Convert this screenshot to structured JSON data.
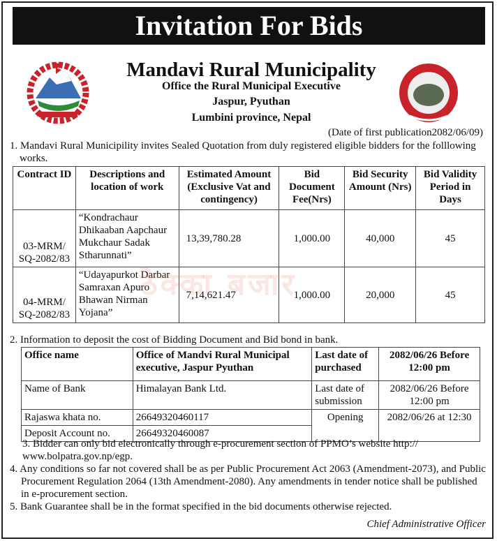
{
  "title": "Invitation For Bids",
  "header": {
    "org": "Mandavi Rural Municipality",
    "office": "Office the Rural Municipal Executive",
    "location": "Jaspur, Pyuthan",
    "province": "Lumbini province, Nepal"
  },
  "publication_date": "(Date of first publication2082/06/09)",
  "watermark": "ठेक्का बजार",
  "item1": "1. Mandavi Rural Municipility invites Sealed Quotation  from duly registered eligible  bidders for the folllowing works.",
  "works_table": {
    "headers": [
      "Contract ID",
      "Descriptions and location of work",
      "Estimated Amount (Exclusive Vat and contingency)",
      "Bid Document Fee(Nrs)",
      "Bid Security Amount (Nrs)",
      "Bid Validity Period in Days"
    ],
    "rows": [
      [
        "03-MRM/ SQ-2082/83",
        "“Kondrachaur Dhikaaban Aapchaur Mukchaur Sadak Stharunnati”",
        "13,39,780.28",
        "1,000.00",
        "40,000",
        "45"
      ],
      [
        "04-MRM/ SQ-2082/83",
        "“Udayapurkot Darbar Samraxan Apuro Bhawan Nirman Yojana”",
        "7,14,621.47",
        "1,000.00",
        "20,000",
        "45"
      ]
    ]
  },
  "item2": "2. Information to deposit  the cost of Bidding Document and Bid bond in bank.",
  "bank_table": {
    "office_name_label": "Office name",
    "office_name": "Office of Mandvi Rural Municipal executive, Jaspur Pyuthan",
    "last_purchase_label": "Last date of purchased",
    "last_purchase": "2082/06/26 Before 12:00 pm",
    "bank_label": "Name of Bank",
    "bank": "Himalayan Bank Ltd.",
    "last_submission_label": "Last date of submission",
    "last_submission": "2082/06/26 Before 12:00 pm",
    "rajaswa_label": "Rajaswa khata no.",
    "rajaswa": "26649320460117",
    "opening_label": "Opening",
    "opening": "2082/06/26 at 12:30",
    "deposit_label": "Deposit Account no.",
    "deposit": "26649320460087"
  },
  "item3": "3. Bidder can only bid electronically through e-procurement section of PPMO’s website http:// www.bolpatra.gov.np/egp.",
  "item4": "4. Any conditions so far not covered shall be as per Public Procurement Act 2063 (Amendment-2073), and Public Procurement Regulation 2064 (13th Amendment-2080). Any amendments in tender notice shall be published in e-procurement section.",
  "item5": "5. Bank Guarantee shall be in the format specified in the bid documents otherwise rejected.",
  "signature": "Chief Administrative Officer"
}
